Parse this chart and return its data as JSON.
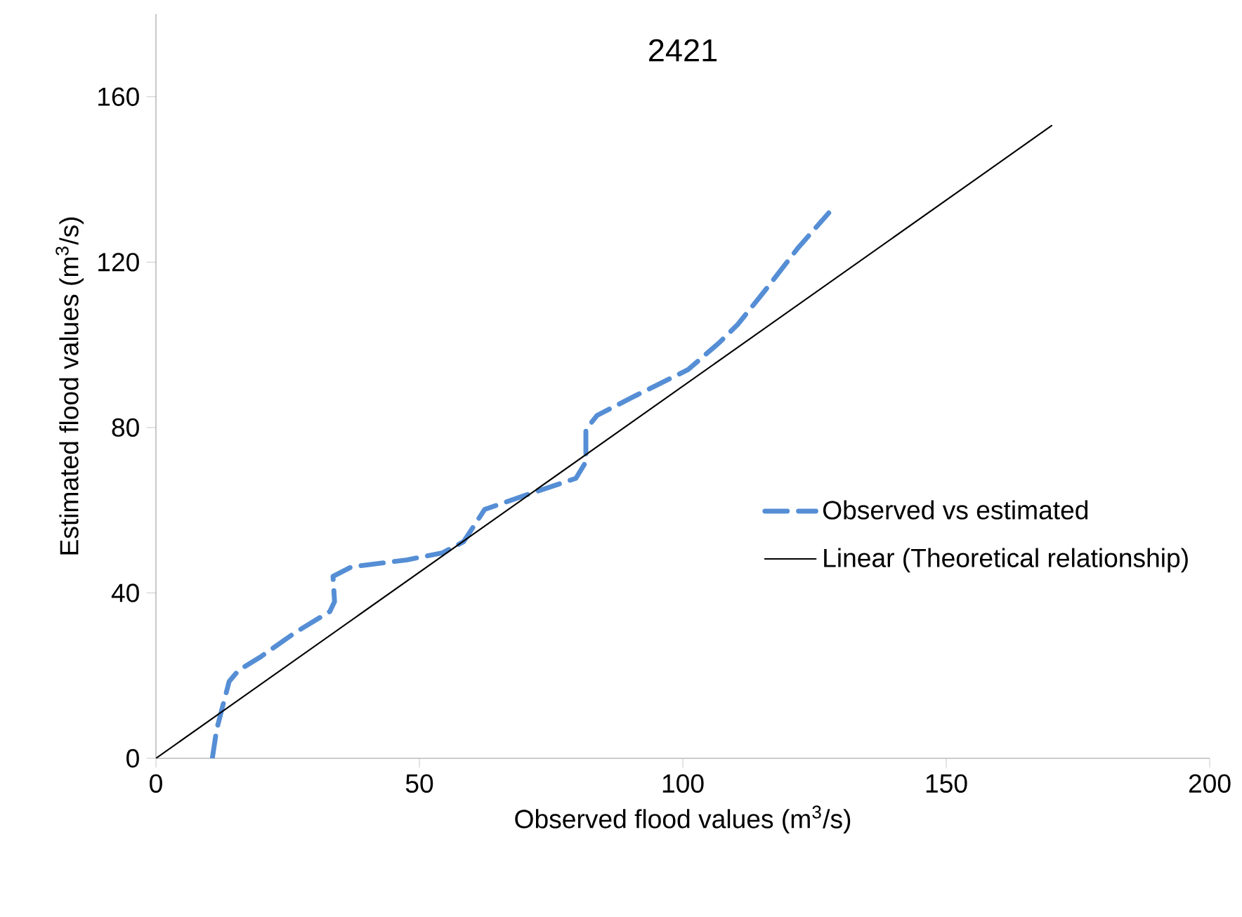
{
  "chart_data": {
    "type": "line",
    "title": "2421",
    "xlabel": "Observed flood values  (m$^{3}$/s)",
    "ylabel": "Estimated flood values (m$^{3}$/s)",
    "xlim": [
      0,
      200
    ],
    "ylim": [
      0,
      180
    ],
    "xticks": [
      0,
      50,
      100,
      150,
      200
    ],
    "yticks": [
      0,
      40,
      80,
      120,
      160
    ],
    "legend": "right",
    "series": [
      {
        "name": "Observed vs estimated",
        "color": "#558ed5",
        "line_style": "dashed",
        "x": [
          10.7,
          11.5,
          12.5,
          13.9,
          15.7,
          19.7,
          26.4,
          33,
          33.9,
          33.6,
          37.1,
          47.7,
          54.4,
          58.4,
          62.4,
          71.7,
          79.7,
          81.6,
          81.6,
          83.7,
          90.4,
          101,
          106.9,
          110.4,
          115.7,
          121.9,
          127.7
        ],
        "values": [
          0,
          6.8,
          11.8,
          18.6,
          21.3,
          24.4,
          30.4,
          35.5,
          37.9,
          44,
          46.3,
          48,
          49.7,
          52.4,
          60.2,
          64.3,
          67.7,
          71.7,
          79.5,
          82.9,
          87.3,
          94,
          100.5,
          104.9,
          113.3,
          123.5,
          131.9
        ]
      },
      {
        "name": "Linear (Theoretical relationship)",
        "color": "#000000",
        "line_style": "solid",
        "x": [
          0,
          170
        ],
        "values": [
          0,
          153
        ]
      }
    ]
  }
}
